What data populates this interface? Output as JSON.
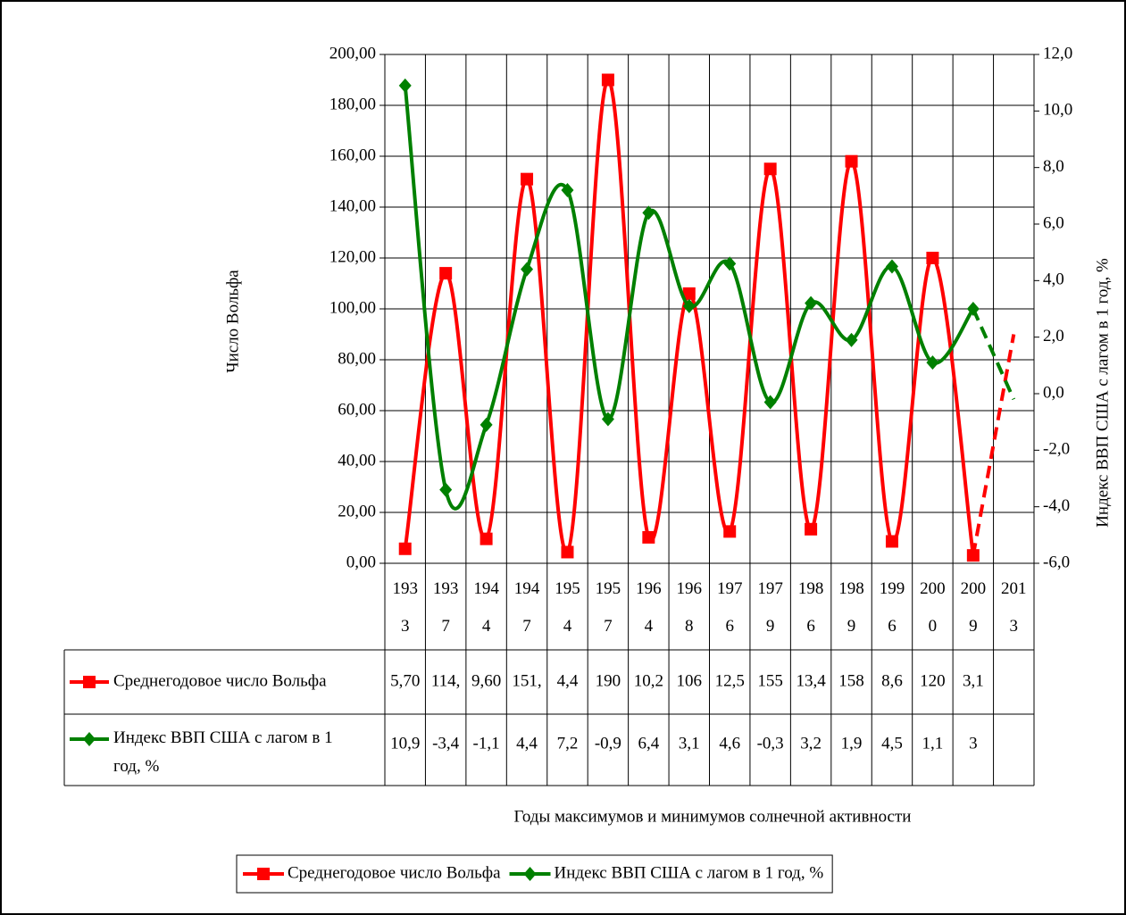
{
  "chart_data": {
    "type": "line",
    "categories": [
      "1933",
      "1937",
      "1944",
      "1947",
      "1954",
      "1957",
      "1964",
      "1968",
      "1976",
      "1979",
      "1986",
      "1989",
      "1996",
      "2000",
      "2009",
      "2013"
    ],
    "series": [
      {
        "name": "Среднегодовое число Вольфа",
        "color": "#ff0000",
        "marker": "square",
        "values": [
          5.7,
          114,
          9.6,
          151,
          4.4,
          190,
          10.2,
          106,
          12.5,
          155,
          13.4,
          158,
          8.6,
          120,
          3.1,
          null
        ],
        "value_labels": [
          "5,70",
          "114,",
          "9,60",
          "151,",
          "4,4",
          "190",
          "10,2",
          "106",
          "12,5",
          "155",
          "13,4",
          "158",
          "8,6",
          "120",
          "3,1",
          null
        ],
        "projection": 90
      },
      {
        "name": "Индекс ВВП США с лагом в 1 год, %",
        "color": "#008000",
        "marker": "diamond",
        "axis": "y2",
        "values": [
          10.9,
          -3.4,
          -1.1,
          4.4,
          7.2,
          -0.9,
          6.4,
          3.1,
          4.6,
          -0.3,
          3.2,
          1.9,
          4.5,
          1.1,
          3,
          null
        ],
        "value_labels": [
          "10,9",
          "-3,4",
          "-1,1",
          "4,4",
          "7,2",
          "-0,9",
          "6,4",
          "3,1",
          "4,6",
          "-0,3",
          "3,2",
          "1,9",
          "4,5",
          "1,1",
          "3",
          null
        ],
        "projection": -0.2
      }
    ],
    "ylabel": "Число Вольфа",
    "y2label": "Индекс ВВП США с лагом в 1 год, %",
    "xlabel": "Годы максимумов и минимумов солнечной активности",
    "ylim": [
      0,
      200
    ],
    "yticks": [
      {
        "value": 0,
        "label": "0,00"
      },
      {
        "value": 20,
        "label": "20,00"
      },
      {
        "value": 40,
        "label": "40,00"
      },
      {
        "value": 60,
        "label": "60,00"
      },
      {
        "value": 80,
        "label": "80,00"
      },
      {
        "value": 100,
        "label": "100,00"
      },
      {
        "value": 120,
        "label": "120,00"
      },
      {
        "value": 140,
        "label": "140,00"
      },
      {
        "value": 160,
        "label": "160,00"
      },
      {
        "value": 180,
        "label": "180,00"
      },
      {
        "value": 200,
        "label": "200,00"
      }
    ],
    "y2lim": [
      -6,
      12
    ],
    "y2ticks": [
      {
        "value": -6,
        "label": "-6,0"
      },
      {
        "value": -4,
        "label": "-4,0"
      },
      {
        "value": -2,
        "label": "-2,0"
      },
      {
        "value": 0,
        "label": "0,0"
      },
      {
        "value": 2,
        "label": "2,0"
      },
      {
        "value": 4,
        "label": "4,0"
      },
      {
        "value": 6,
        "label": "6,0"
      },
      {
        "value": 8,
        "label": "8,0"
      },
      {
        "value": 10,
        "label": "10,0"
      },
      {
        "value": 12,
        "label": "12,0"
      }
    ],
    "grid": true,
    "legend": "bottom",
    "data_table": true
  }
}
